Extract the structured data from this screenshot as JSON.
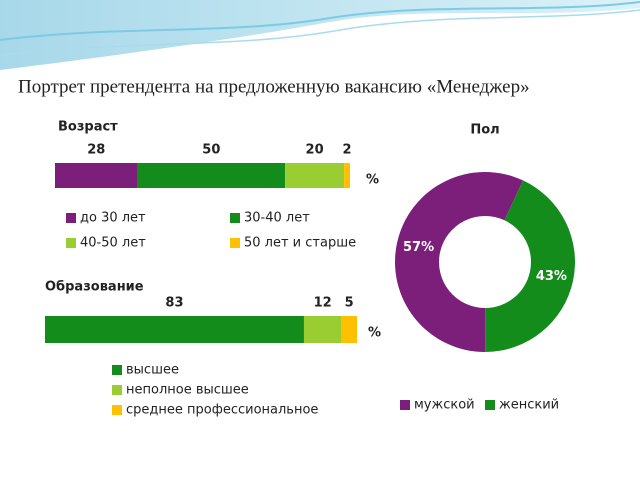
{
  "title": "Портрет претендента на предложенную вакансию «Менеджер»",
  "chart_data": [
    {
      "type": "bar",
      "orientation": "horizontal",
      "stacked": true,
      "title": "Возраст",
      "unit": "%",
      "xlim": [
        0,
        100
      ],
      "series": [
        {
          "name": "до 30 лет",
          "color": "#7b1f7b",
          "values": [
            28
          ]
        },
        {
          "name": "30-40 лет",
          "color": "#138c1c",
          "values": [
            50
          ]
        },
        {
          "name": "40-50 лет",
          "color": "#9acd32",
          "values": [
            20
          ]
        },
        {
          "name": "50 лет и старше",
          "color": "#ffc000",
          "values": [
            2
          ]
        }
      ]
    },
    {
      "type": "bar",
      "orientation": "horizontal",
      "stacked": true,
      "title": "Образование",
      "unit": "%",
      "xlim": [
        0,
        100
      ],
      "series": [
        {
          "name": "высшее",
          "color": "#138c1c",
          "values": [
            83
          ]
        },
        {
          "name": "неполное высшее",
          "color": "#9acd32",
          "values": [
            12
          ]
        },
        {
          "name": "среднее профессиональное",
          "color": "#ffc000",
          "values": [
            5
          ]
        }
      ]
    },
    {
      "type": "pie",
      "donut": true,
      "title": "Пол",
      "categories": [
        "мужской",
        "женский"
      ],
      "values": [
        57,
        43
      ],
      "value_labels": [
        "57%",
        "43%"
      ],
      "colors": [
        "#7b1f7b",
        "#138c1c"
      ]
    }
  ]
}
